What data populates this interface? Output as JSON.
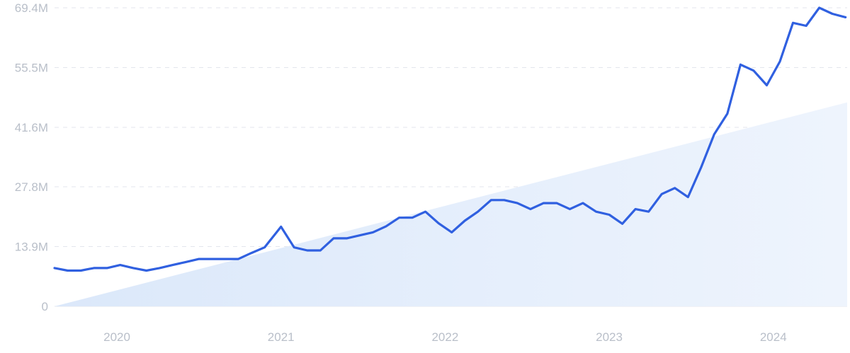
{
  "chart_data": {
    "type": "line",
    "title": "",
    "xlabel": "",
    "ylabel": "",
    "x_tick_labels": [
      "2020",
      "2021",
      "2022",
      "2023",
      "2024"
    ],
    "x_tick_values": [
      2020.0,
      2021.0,
      2022.0,
      2023.0,
      2024.0
    ],
    "xlim": [
      2019.62,
      2024.45
    ],
    "y_tick_labels": [
      "0",
      "13.9M",
      "27.8M",
      "41.6M",
      "55.5M",
      "69.4M"
    ],
    "y_tick_values": [
      0,
      13.9,
      27.8,
      41.6,
      55.5,
      69.4
    ],
    "ylim": [
      0,
      69.4
    ],
    "y_unit": "M",
    "grid": true,
    "legend": "none",
    "colors": {
      "line": "#3060e0",
      "trend_fill_start": "#dbe8fa",
      "trend_fill_end": "#eef4fd",
      "grid": "#e3e6ec",
      "tick_text": "#b9bfc9"
    },
    "series": [
      {
        "x": [
          2019.62,
          2019.7,
          2019.78,
          2019.86,
          2019.94,
          2020.02,
          2020.1,
          2020.18,
          2020.26,
          2020.34,
          2020.42,
          2020.5,
          2020.58,
          2020.66,
          2020.74,
          2020.82,
          2020.9,
          2021.0,
          2021.08,
          2021.16,
          2021.24,
          2021.32,
          2021.4,
          2021.48,
          2021.56,
          2021.64,
          2021.72,
          2021.8,
          2021.88,
          2021.96,
          2022.04,
          2022.12,
          2022.2,
          2022.28,
          2022.36,
          2022.44,
          2022.52,
          2022.6,
          2022.68,
          2022.76,
          2022.84,
          2022.92,
          2023.0,
          2023.08,
          2023.16,
          2023.24,
          2023.32,
          2023.4,
          2023.48,
          2023.56,
          2023.64,
          2023.72,
          2023.8,
          2023.88,
          2023.96,
          2024.04,
          2024.12,
          2024.2,
          2024.28,
          2024.36,
          2024.44
        ],
        "values": [
          8.9,
          8.3,
          8.3,
          8.9,
          8.9,
          9.6,
          8.9,
          8.3,
          8.9,
          9.6,
          10.3,
          11.0,
          11.0,
          11.0,
          11.0,
          12.4,
          13.7,
          18.5,
          13.7,
          13.0,
          13.0,
          15.8,
          15.8,
          16.5,
          17.2,
          18.6,
          20.6,
          20.6,
          22.0,
          19.3,
          17.2,
          19.9,
          22.0,
          24.7,
          24.7,
          24.0,
          22.6,
          24.0,
          24.0,
          22.6,
          24.0,
          22.0,
          21.3,
          19.2,
          22.6,
          22.0,
          26.1,
          27.5,
          25.4,
          32.3,
          40.0,
          44.8,
          56.2,
          54.8,
          51.4,
          56.9,
          65.9,
          65.2,
          69.4,
          68.0,
          67.2
        ]
      }
    ],
    "trend_band": {
      "x": [
        2019.62,
        2024.45
      ],
      "values": [
        0,
        47.4
      ]
    }
  }
}
